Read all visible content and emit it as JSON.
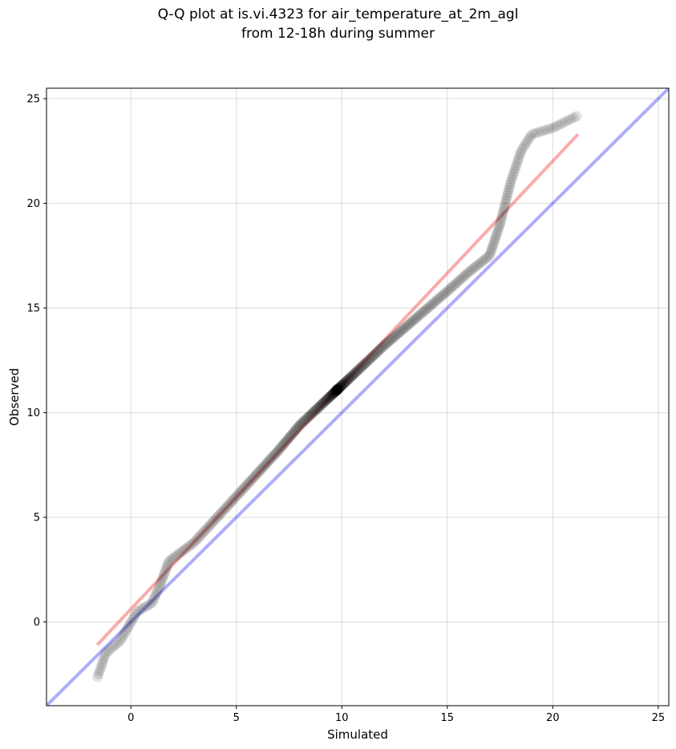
{
  "chart_data": {
    "type": "scatter",
    "title": [
      "Q-Q plot at is.vi.4323 for air_temperature_at_2m_agl",
      "from 12-18h during summer"
    ],
    "xlabel": "Simulated",
    "ylabel": "Observed",
    "xlim": [
      -4.0,
      25.5
    ],
    "ylim": [
      -4.0,
      25.5
    ],
    "x_ticks": [
      0,
      5,
      10,
      15,
      20,
      25
    ],
    "y_ticks": [
      0,
      5,
      10,
      15,
      20,
      25
    ],
    "grid": true,
    "colors": {
      "points": "#000000",
      "identity_line": "#0000ee",
      "fit_line": "#ee1111"
    },
    "series": [
      {
        "type": "scatter",
        "quantile_curve": [
          [
            -1.6,
            -2.7
          ],
          [
            -1.2,
            -1.5
          ],
          [
            -0.5,
            -0.9
          ],
          [
            0.3,
            0.5
          ],
          [
            1.0,
            0.9
          ],
          [
            1.4,
            1.8
          ],
          [
            1.8,
            2.9
          ],
          [
            3.0,
            3.8
          ],
          [
            5.0,
            6.0
          ],
          [
            7.0,
            8.2
          ],
          [
            8.0,
            9.4
          ],
          [
            10.0,
            11.3
          ],
          [
            12.0,
            13.2
          ],
          [
            13.5,
            14.5
          ],
          [
            15.0,
            15.8
          ],
          [
            16.0,
            16.7
          ],
          [
            17.0,
            17.5
          ],
          [
            17.5,
            19.0
          ],
          [
            18.0,
            21.0
          ],
          [
            18.5,
            22.5
          ],
          [
            19.0,
            23.3
          ],
          [
            20.0,
            23.6
          ],
          [
            21.2,
            24.2
          ]
        ],
        "n_points": 420
      },
      {
        "type": "line",
        "role": "identity",
        "points": [
          [
            -4.0,
            -4.0
          ],
          [
            25.5,
            25.5
          ]
        ]
      },
      {
        "type": "line",
        "role": "fit",
        "points": [
          [
            -1.6,
            -1.1
          ],
          [
            21.2,
            23.3
          ]
        ]
      }
    ]
  }
}
